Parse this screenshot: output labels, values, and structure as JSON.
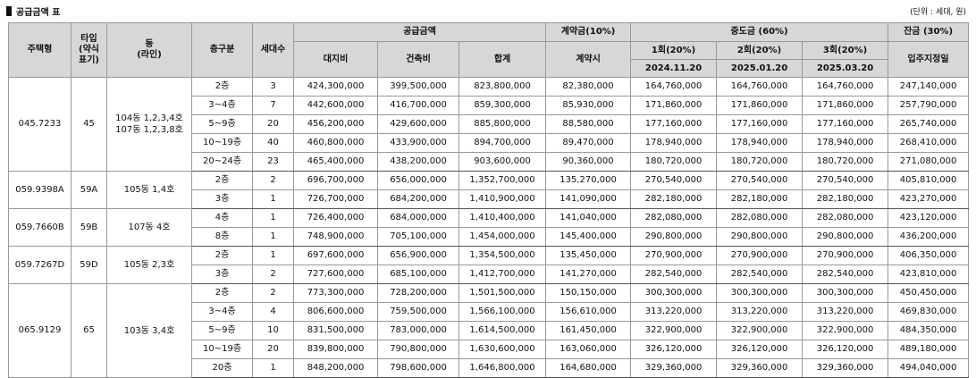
{
  "title": "공급금액 표",
  "unit": "(단위 : 세대, 원)",
  "headers": {
    "house_type": "주택형",
    "type_abbr": "타입\n(약식\n표기)",
    "dong_line": "동\n(라인)",
    "floor": "층구분",
    "households": "세대수",
    "supply_price": "공급금액",
    "land": "대지비",
    "building": "건축비",
    "total": "합계",
    "contract_group": "계약금(10%)",
    "contract_time": "계약시",
    "middle_group": "중도금 (60%)",
    "m1": "1회(20%)",
    "m2": "2회(20%)",
    "m3": "3회(20%)",
    "m1_date": "2024.11.20",
    "m2_date": "2025.01.20",
    "m3_date": "2025.03.20",
    "balance_group": "잔금 (30%)",
    "balance_time": "입주지정일"
  },
  "groups": [
    {
      "house_type": "045.7233",
      "type_abbr": "45",
      "dong": "104동 1,2,3,4호\n107동 1,2,3,8호",
      "rows": [
        {
          "floor": "2층",
          "households": "3",
          "land": "424,300,000",
          "building": "399,500,000",
          "total": "823,800,000",
          "contract": "82,380,000",
          "m1": "164,760,000",
          "m2": "164,760,000",
          "m3": "164,760,000",
          "balance": "247,140,000"
        },
        {
          "floor": "3~4층",
          "households": "7",
          "land": "442,600,000",
          "building": "416,700,000",
          "total": "859,300,000",
          "contract": "85,930,000",
          "m1": "171,860,000",
          "m2": "171,860,000",
          "m3": "171,860,000",
          "balance": "257,790,000"
        },
        {
          "floor": "5~9층",
          "households": "20",
          "land": "456,200,000",
          "building": "429,600,000",
          "total": "885,800,000",
          "contract": "88,580,000",
          "m1": "177,160,000",
          "m2": "177,160,000",
          "m3": "177,160,000",
          "balance": "265,740,000"
        },
        {
          "floor": "10~19층",
          "households": "40",
          "land": "460,800,000",
          "building": "433,900,000",
          "total": "894,700,000",
          "contract": "89,470,000",
          "m1": "178,940,000",
          "m2": "178,940,000",
          "m3": "178,940,000",
          "balance": "268,410,000"
        },
        {
          "floor": "20~24층",
          "households": "23",
          "land": "465,400,000",
          "building": "438,200,000",
          "total": "903,600,000",
          "contract": "90,360,000",
          "m1": "180,720,000",
          "m2": "180,720,000",
          "m3": "180,720,000",
          "balance": "271,080,000"
        }
      ]
    },
    {
      "house_type": "059.9398A",
      "type_abbr": "59A",
      "dong": "105동 1,4호",
      "rows": [
        {
          "floor": "2층",
          "households": "2",
          "land": "696,700,000",
          "building": "656,000,000",
          "total": "1,352,700,000",
          "contract": "135,270,000",
          "m1": "270,540,000",
          "m2": "270,540,000",
          "m3": "270,540,000",
          "balance": "405,810,000"
        },
        {
          "floor": "3층",
          "households": "1",
          "land": "726,700,000",
          "building": "684,200,000",
          "total": "1,410,900,000",
          "contract": "141,090,000",
          "m1": "282,180,000",
          "m2": "282,180,000",
          "m3": "282,180,000",
          "balance": "423,270,000"
        }
      ]
    },
    {
      "house_type": "059.7660B",
      "type_abbr": "59B",
      "dong": "107동 4호",
      "rows": [
        {
          "floor": "4층",
          "households": "1",
          "land": "726,400,000",
          "building": "684,000,000",
          "total": "1,410,400,000",
          "contract": "141,040,000",
          "m1": "282,080,000",
          "m2": "282,080,000",
          "m3": "282,080,000",
          "balance": "423,120,000"
        },
        {
          "floor": "8층",
          "households": "1",
          "land": "748,900,000",
          "building": "705,100,000",
          "total": "1,454,000,000",
          "contract": "145,400,000",
          "m1": "290,800,000",
          "m2": "290,800,000",
          "m3": "290,800,000",
          "balance": "436,200,000"
        }
      ]
    },
    {
      "house_type": "059.7267D",
      "type_abbr": "59D",
      "dong": "105동 2,3호",
      "rows": [
        {
          "floor": "2층",
          "households": "1",
          "land": "697,600,000",
          "building": "656,900,000",
          "total": "1,354,500,000",
          "contract": "135,450,000",
          "m1": "270,900,000",
          "m2": "270,900,000",
          "m3": "270,900,000",
          "balance": "406,350,000"
        },
        {
          "floor": "3층",
          "households": "2",
          "land": "727,600,000",
          "building": "685,100,000",
          "total": "1,412,700,000",
          "contract": "141,270,000",
          "m1": "282,540,000",
          "m2": "282,540,000",
          "m3": "282,540,000",
          "balance": "423,810,000"
        }
      ]
    },
    {
      "house_type": "065.9129",
      "type_abbr": "65",
      "dong": "103동 3,4호",
      "rows": [
        {
          "floor": "2층",
          "households": "2",
          "land": "773,300,000",
          "building": "728,200,000",
          "total": "1,501,500,000",
          "contract": "150,150,000",
          "m1": "300,300,000",
          "m2": "300,300,000",
          "m3": "300,300,000",
          "balance": "450,450,000"
        },
        {
          "floor": "3~4층",
          "households": "4",
          "land": "806,600,000",
          "building": "759,500,000",
          "total": "1,566,100,000",
          "contract": "156,610,000",
          "m1": "313,220,000",
          "m2": "313,220,000",
          "m3": "313,220,000",
          "balance": "469,830,000"
        },
        {
          "floor": "5~9층",
          "households": "10",
          "land": "831,500,000",
          "building": "783,000,000",
          "total": "1,614,500,000",
          "contract": "161,450,000",
          "m1": "322,900,000",
          "m2": "322,900,000",
          "m3": "322,900,000",
          "balance": "484,350,000"
        },
        {
          "floor": "10~19층",
          "households": "20",
          "land": "839,800,000",
          "building": "790,800,000",
          "total": "1,630,600,000",
          "contract": "163,060,000",
          "m1": "326,120,000",
          "m2": "326,120,000",
          "m3": "326,120,000",
          "balance": "489,180,000"
        },
        {
          "floor": "20층",
          "households": "1",
          "land": "848,200,000",
          "building": "798,600,000",
          "total": "1,646,800,000",
          "contract": "164,680,000",
          "m1": "329,360,000",
          "m2": "329,360,000",
          "m3": "329,360,000",
          "balance": "494,040,000"
        }
      ]
    }
  ]
}
